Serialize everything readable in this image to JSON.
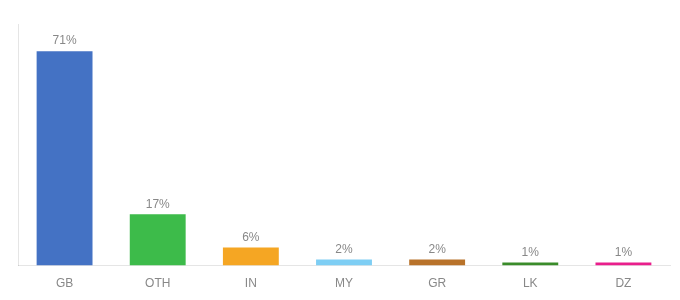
{
  "chart_data": {
    "type": "bar",
    "categories": [
      "GB",
      "OTH",
      "IN",
      "MY",
      "GR",
      "LK",
      "DZ"
    ],
    "values": [
      71,
      17,
      6,
      2,
      2,
      1,
      1
    ],
    "value_labels": [
      "71%",
      "17%",
      "6%",
      "2%",
      "2%",
      "1%",
      "1%"
    ],
    "colors": [
      "#4472c4",
      "#3dbb4a",
      "#f5a623",
      "#7ecef4",
      "#b8722a",
      "#3a8c2a",
      "#e91e8c"
    ],
    "ylim": [
      0,
      80
    ],
    "data_labels": true,
    "tick_labels": "x",
    "grid": false
  }
}
